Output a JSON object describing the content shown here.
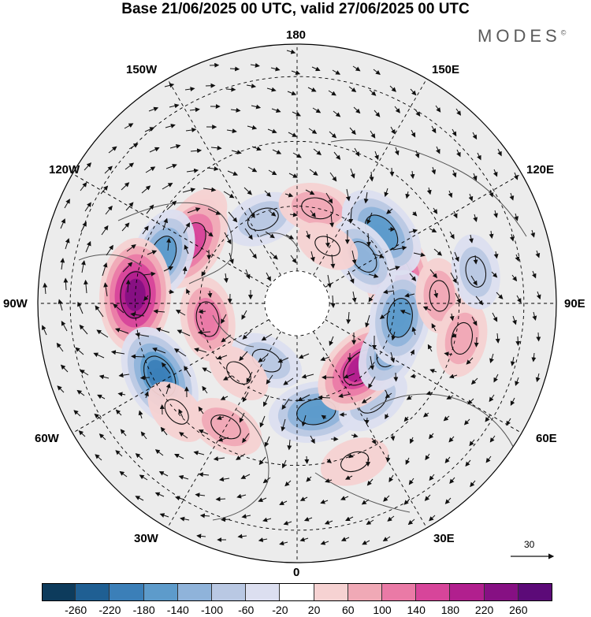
{
  "title": "Base 21/06/2025 00 UTC, valid 27/06/2025 00 UTC",
  "brand": "MODES",
  "brand_mark": "©",
  "longitude_labels": {
    "top": "180",
    "bottom": "0",
    "left": "90W",
    "right": "90E",
    "upper_left_1": "150W",
    "upper_left_2": "120W",
    "lower_left_1": "60W",
    "lower_left_2": "30W",
    "upper_right_1": "150E",
    "upper_right_2": "120E",
    "lower_right_1": "60E",
    "lower_right_2": "30E"
  },
  "vector_scale_label": "30",
  "colorbar": {
    "ticks": [
      "-260",
      "-220",
      "-180",
      "-140",
      "-100",
      "-60",
      "-20",
      "20",
      "60",
      "100",
      "140",
      "180",
      "220",
      "260"
    ],
    "colors": [
      "#0d3b5c",
      "#1f5f93",
      "#3b7fb8",
      "#5d9bcb",
      "#8fb3da",
      "#b9c8e3",
      "#dcdff0",
      "#ffffff",
      "#f6d2d2",
      "#f0a9b6",
      "#ea7aa6",
      "#d7459a",
      "#b11f8e",
      "#861083",
      "#5c0a78"
    ]
  },
  "anomalies": [
    {
      "lon": -158,
      "lat": 62,
      "value": -90
    },
    {
      "lon": 168,
      "lat": 60,
      "value": 90
    },
    {
      "lon": -130,
      "lat": 50,
      "value": 70
    },
    {
      "lon": -120,
      "lat": 52,
      "value": 180
    },
    {
      "lon": -110,
      "lat": 46,
      "value": -150
    },
    {
      "lon": -93,
      "lat": 40,
      "value": 230
    },
    {
      "lon": -62,
      "lat": 42,
      "value": -200
    },
    {
      "lon": -80,
      "lat": 62,
      "value": 120
    },
    {
      "lon": -48,
      "lat": 40,
      "value": 60
    },
    {
      "lon": -30,
      "lat": 46,
      "value": 90
    },
    {
      "lon": -28,
      "lat": 70,
      "value": -80
    },
    {
      "lon": 10,
      "lat": 56,
      "value": -160
    },
    {
      "lon": 38,
      "lat": 52,
      "value": -90
    },
    {
      "lon": 45,
      "lat": 62,
      "value": 190
    },
    {
      "lon": 63,
      "lat": 58,
      "value": -120
    },
    {
      "lon": 105,
      "lat": 58,
      "value": 200
    },
    {
      "lon": 130,
      "lat": 56,
      "value": -170
    },
    {
      "lon": 125,
      "lat": 65,
      "value": -110
    },
    {
      "lon": 82,
      "lat": 58,
      "value": -160
    },
    {
      "lon": 93,
      "lat": 46,
      "value": 80
    },
    {
      "lon": 78,
      "lat": 38,
      "value": 90
    },
    {
      "lon": 100,
      "lat": 34,
      "value": -80
    },
    {
      "lon": 152,
      "lat": 70,
      "value": 40
    },
    {
      "lon": -40,
      "lat": 62,
      "value": 50
    },
    {
      "lon": 20,
      "lat": 38,
      "value": 60
    }
  ]
}
